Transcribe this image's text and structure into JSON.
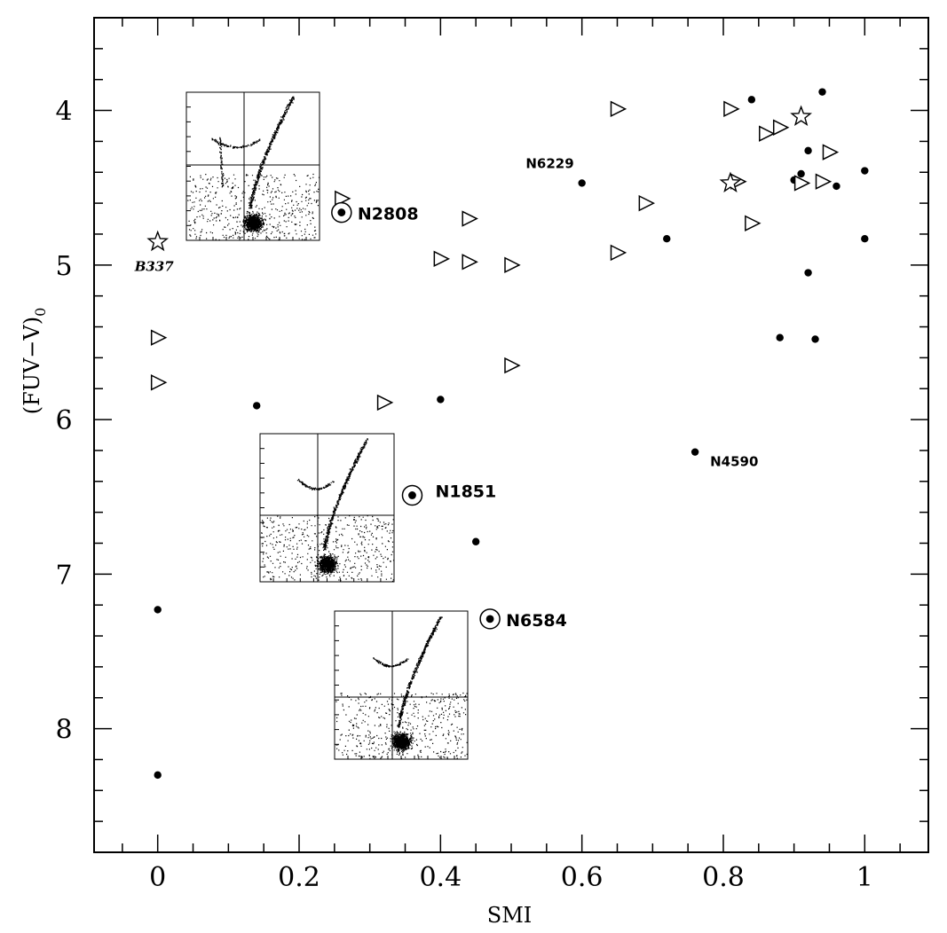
{
  "chart_data": {
    "type": "scatter",
    "title": "",
    "xlabel": "SMI",
    "ylabel_main": "(FUV−V)",
    "ylabel_sub": "0",
    "xlim": [
      -0.09,
      1.09
    ],
    "ylim": [
      8.8,
      3.4
    ],
    "y_inverted": true,
    "grid": false,
    "x_ticks": [
      {
        "v": 0,
        "label": "0"
      },
      {
        "v": 0.2,
        "label": "0.2"
      },
      {
        "v": 0.4,
        "label": "0.4"
      },
      {
        "v": 0.6,
        "label": "0.6"
      },
      {
        "v": 0.8,
        "label": "0.8"
      },
      {
        "v": 1,
        "label": "1"
      }
    ],
    "y_ticks": [
      {
        "v": 4,
        "label": "4"
      },
      {
        "v": 5,
        "label": "5"
      },
      {
        "v": 6,
        "label": "6"
      },
      {
        "v": 7,
        "label": "7"
      },
      {
        "v": 8,
        "label": "8"
      }
    ],
    "series": [
      {
        "marker": "filled-circle",
        "points": [
          [
            0.6,
            4.47
          ],
          [
            0.72,
            4.83
          ],
          [
            0.84,
            3.93
          ],
          [
            0.94,
            3.88
          ],
          [
            0.92,
            4.26
          ],
          [
            0.91,
            4.41
          ],
          [
            0.9,
            4.45
          ],
          [
            0.96,
            4.49
          ],
          [
            1.0,
            4.39
          ],
          [
            1.0,
            4.83
          ],
          [
            0.92,
            5.05
          ],
          [
            0.88,
            5.47
          ],
          [
            0.93,
            5.48
          ],
          [
            0.14,
            5.91
          ],
          [
            0.4,
            5.87
          ],
          [
            0.76,
            6.21
          ],
          [
            0.45,
            6.79
          ],
          [
            0.0,
            7.23
          ],
          [
            0.0,
            8.3
          ]
        ]
      },
      {
        "marker": "open-triangle-right",
        "points": [
          [
            0.26,
            4.57
          ],
          [
            0.44,
            4.7
          ],
          [
            0.4,
            4.96
          ],
          [
            0.44,
            4.98
          ],
          [
            0.5,
            5.0
          ],
          [
            0.65,
            3.99
          ],
          [
            0.69,
            4.6
          ],
          [
            0.65,
            4.92
          ],
          [
            0.81,
            3.99
          ],
          [
            0.86,
            4.15
          ],
          [
            0.88,
            4.11
          ],
          [
            0.95,
            4.27
          ],
          [
            0.82,
            4.46
          ],
          [
            0.91,
            4.47
          ],
          [
            0.94,
            4.46
          ],
          [
            0.84,
            4.73
          ],
          [
            0.0,
            5.47
          ],
          [
            0.0,
            5.76
          ],
          [
            0.5,
            5.65
          ],
          [
            0.32,
            5.89
          ]
        ]
      },
      {
        "marker": "open-star",
        "points": [
          [
            0.0,
            4.85
          ],
          [
            0.91,
            4.04
          ],
          [
            0.81,
            4.47
          ]
        ]
      },
      {
        "marker": "circled-dot",
        "points": [
          [
            0.26,
            4.66
          ],
          [
            0.36,
            6.49
          ],
          [
            0.47,
            7.29
          ]
        ]
      }
    ],
    "annotations": [
      {
        "text": "N2808",
        "x": 0.26,
        "y": 4.66,
        "style": "lg",
        "anchor": "start",
        "dx": 18,
        "dy": 8
      },
      {
        "text": "N1851",
        "x": 0.36,
        "y": 6.49,
        "style": "lg",
        "anchor": "start",
        "dx": 26,
        "dy": 2
      },
      {
        "text": "N6584",
        "x": 0.47,
        "y": 7.29,
        "style": "lg",
        "anchor": "start",
        "dx": 18,
        "dy": 8
      },
      {
        "text": "N6229",
        "x": 0.6,
        "y": 4.47,
        "style": "sm",
        "anchor": "end",
        "dx": -9,
        "dy": -17
      },
      {
        "text": "N4590",
        "x": 0.76,
        "y": 6.21,
        "style": "sm",
        "anchor": "start",
        "dx": 17,
        "dy": 16
      },
      {
        "text": "B337",
        "x": 0.0,
        "y": 4.85,
        "style": "it",
        "anchor": "middle",
        "dx": -4,
        "dy": 33
      }
    ]
  }
}
